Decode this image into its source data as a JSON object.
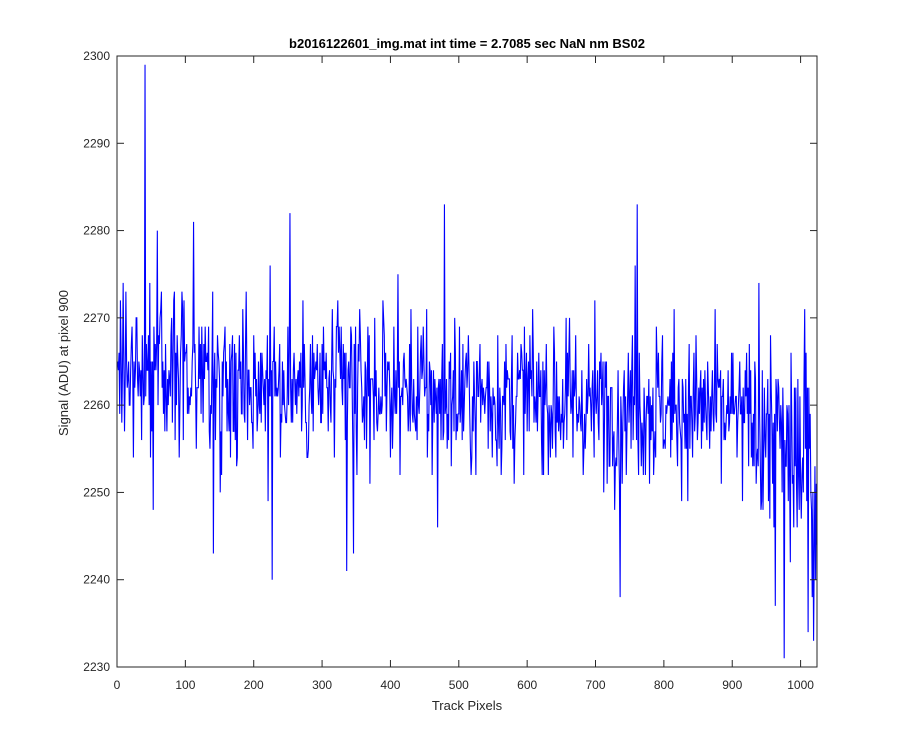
{
  "chart_data": {
    "type": "line",
    "title": "b2016122601_img.mat int time = 2.7085 sec  NaN nm BS02",
    "xlabel": "Track Pixels",
    "ylabel": "Signal (ADU) at pixel 900",
    "xlim": [
      0,
      1024
    ],
    "ylim": [
      2230,
      2300
    ],
    "xticks": [
      0,
      100,
      200,
      300,
      400,
      500,
      600,
      700,
      800,
      900,
      1000
    ],
    "yticks": [
      2230,
      2240,
      2250,
      2260,
      2270,
      2280,
      2290,
      2300
    ],
    "grid": false,
    "legend": "none",
    "line_color": "#0000ff",
    "series": [
      {
        "baseline": [
          [
            0,
            2265
          ],
          [
            100,
            2264
          ],
          [
            200,
            2263
          ],
          [
            300,
            2262
          ],
          [
            400,
            2262
          ],
          [
            500,
            2261
          ],
          [
            600,
            2261
          ],
          [
            700,
            2260
          ],
          [
            800,
            2260
          ],
          [
            900,
            2259
          ],
          [
            950,
            2257
          ],
          [
            1000,
            2253
          ],
          [
            1024,
            2252
          ]
        ],
        "noise_amplitude": 6,
        "point_count": 1024,
        "features": [
          [
            40,
            2299
          ],
          [
            41,
            2261
          ],
          [
            52,
            2248
          ],
          [
            111,
            2281
          ],
          [
            140,
            2243
          ],
          [
            226,
            2240
          ],
          [
            252,
            2282
          ],
          [
            335,
            2241
          ],
          [
            345,
            2243
          ],
          [
            478,
            2283
          ],
          [
            468,
            2246
          ],
          [
            735,
            2238
          ],
          [
            760,
            2283
          ],
          [
            757,
            2276
          ],
          [
            962,
            2237
          ],
          [
            975,
            2231
          ],
          [
            1010,
            2234
          ],
          [
            1018,
            2233
          ],
          [
            1005,
            2271
          ],
          [
            938,
            2274
          ],
          [
            8,
            2274
          ]
        ]
      }
    ]
  }
}
